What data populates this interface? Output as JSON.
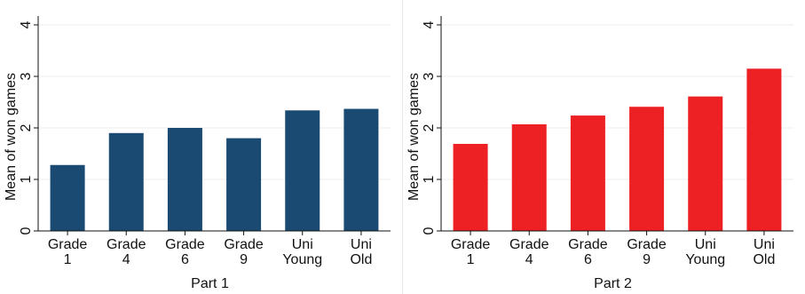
{
  "chart_data": [
    {
      "type": "bar",
      "categories": [
        [
          "Grade",
          "1"
        ],
        [
          "Grade",
          "4"
        ],
        [
          "Grade",
          "6"
        ],
        [
          "Grade",
          "9"
        ],
        [
          "Uni",
          "Young"
        ],
        [
          "Uni",
          "Old"
        ]
      ],
      "values": [
        1.28,
        1.9,
        2.0,
        1.8,
        2.34,
        2.37
      ],
      "xlabel": "Part 1",
      "ylabel": "Mean of won games",
      "ylim": [
        0,
        4
      ],
      "yticks": [
        0,
        1,
        2,
        3,
        4
      ],
      "color": "#1a4a72",
      "grid": true
    },
    {
      "type": "bar",
      "categories": [
        [
          "Grade",
          "1"
        ],
        [
          "Grade",
          "4"
        ],
        [
          "Grade",
          "6"
        ],
        [
          "Grade",
          "9"
        ],
        [
          "Uni",
          "Young"
        ],
        [
          "Uni",
          "Old"
        ]
      ],
      "values": [
        1.69,
        2.07,
        2.24,
        2.41,
        2.61,
        3.15
      ],
      "xlabel": "Part 2",
      "ylabel": "Mean of won games",
      "ylim": [
        0,
        4
      ],
      "yticks": [
        0,
        1,
        2,
        3,
        4
      ],
      "color": "#ed2024",
      "grid": true
    }
  ]
}
